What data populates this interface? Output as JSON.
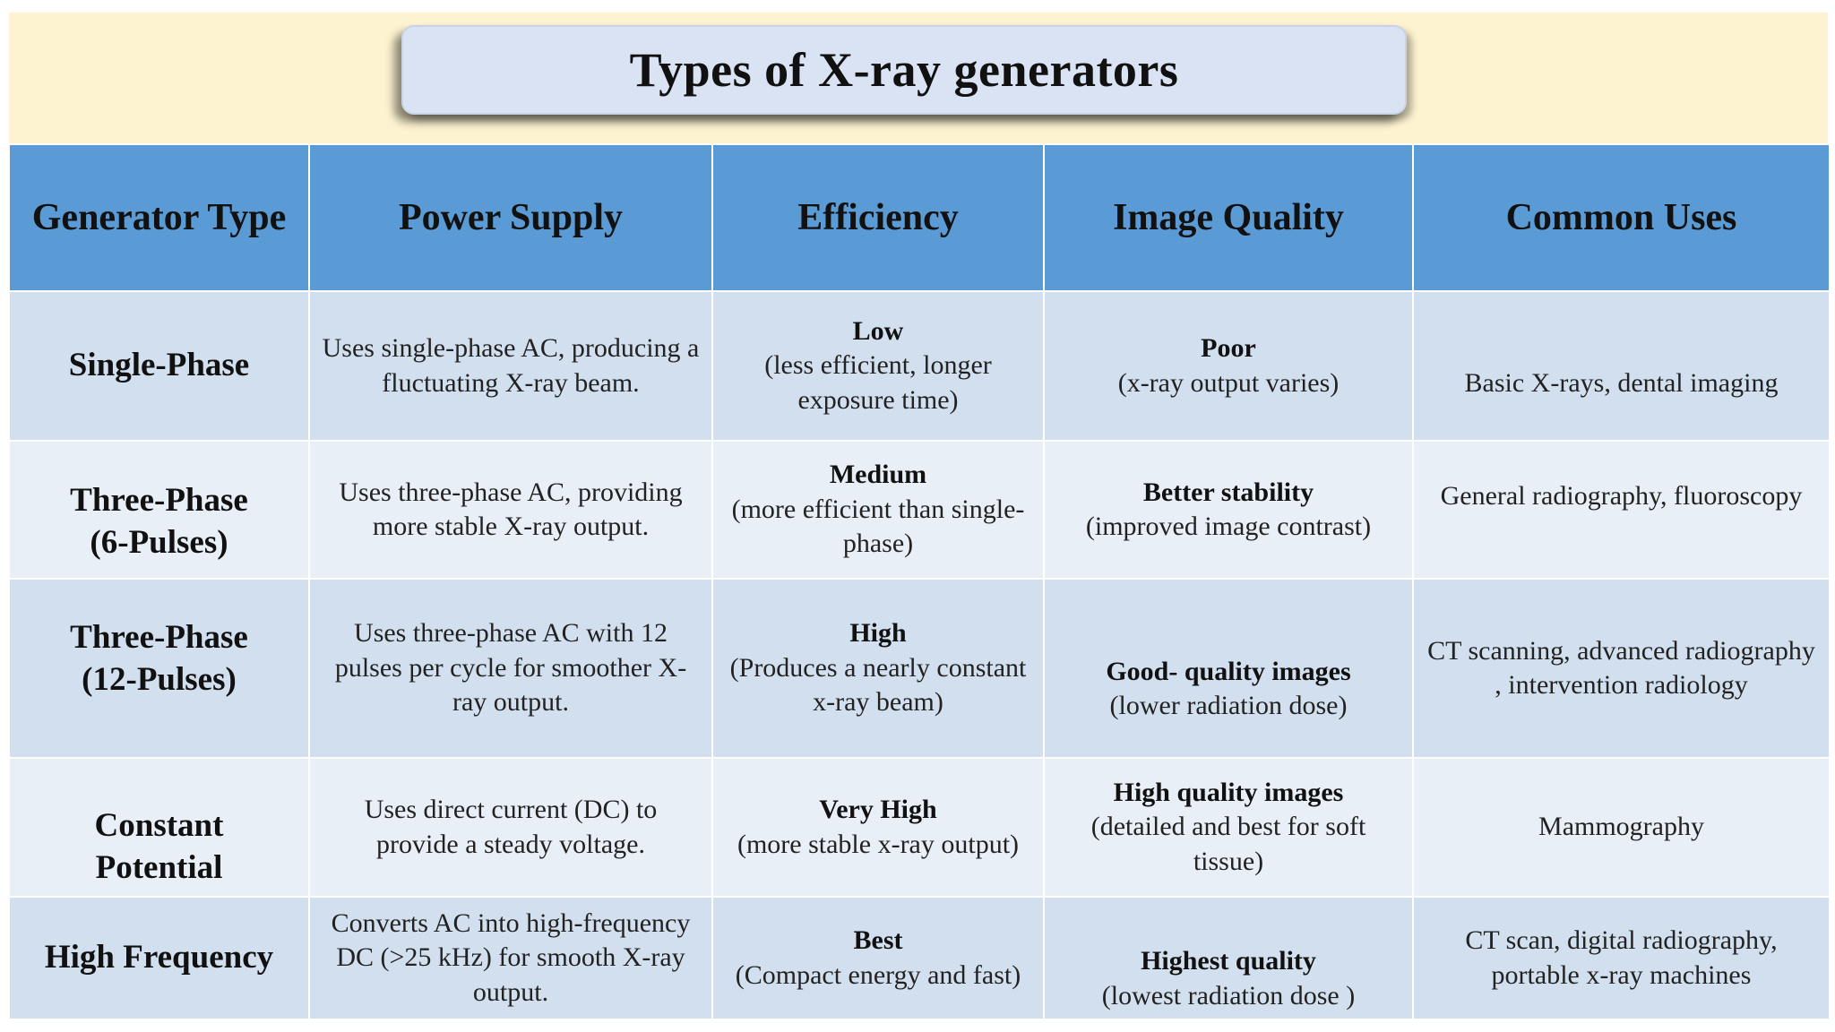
{
  "title": "Types of X-ray generators",
  "colors": {
    "banner": "#fdf3d0",
    "title_box": "#dae3f3",
    "header": "#5b9bd5",
    "row_dark": "#d2dfee",
    "row_light": "#e9eff7"
  },
  "table": {
    "headers": [
      "Generator Type",
      "Power Supply",
      "Efficiency",
      "Image Quality",
      "Common Uses"
    ],
    "rows": [
      {
        "type": [
          "Single-Phase"
        ],
        "power": "Uses single-phase AC, producing a fluctuating X-ray beam.",
        "efficiency": {
          "level": "Low",
          "note": "(less efficient, longer exposure time)"
        },
        "quality": {
          "level": "Poor",
          "note": "(x-ray output varies)"
        },
        "uses": "Basic X-rays, dental imaging"
      },
      {
        "type": [
          "Three-Phase",
          "(6-Pulses)"
        ],
        "power": "Uses three-phase AC, providing more stable X-ray output.",
        "efficiency": {
          "level": "Medium",
          "note": "(more efficient than single-phase)"
        },
        "quality": {
          "level": "Better stability",
          "note": "(improved image contrast)"
        },
        "uses": "General radiography, fluoroscopy"
      },
      {
        "type": [
          "Three-Phase",
          "(12-Pulses)"
        ],
        "power": "Uses three-phase AC with 12 pulses per cycle for smoother X-ray output.",
        "efficiency": {
          "level": "High",
          "note": "(Produces a nearly constant x-ray beam)"
        },
        "quality": {
          "level": "Good- quality images",
          "note": "(lower radiation dose)"
        },
        "uses": "CT scanning, advanced radiography , intervention radiology"
      },
      {
        "type": [
          "Constant",
          "Potential"
        ],
        "power": "Uses direct current (DC) to provide a steady voltage.",
        "efficiency": {
          "level": "Very High",
          "note": "(more stable x-ray output)"
        },
        "quality": {
          "level": "High quality images",
          "note": "(detailed and best for soft tissue)"
        },
        "uses": "Mammography"
      },
      {
        "type": [
          "High Frequency"
        ],
        "power": "Converts AC into high-frequency DC (>25 kHz) for smooth X-ray output.",
        "efficiency": {
          "level": "Best",
          "note": "(Compact energy and fast)"
        },
        "quality": {
          "level": "Highest quality",
          "note": "(lowest radiation dose )"
        },
        "uses": "CT scan, digital radiography, portable x-ray machines"
      }
    ]
  }
}
